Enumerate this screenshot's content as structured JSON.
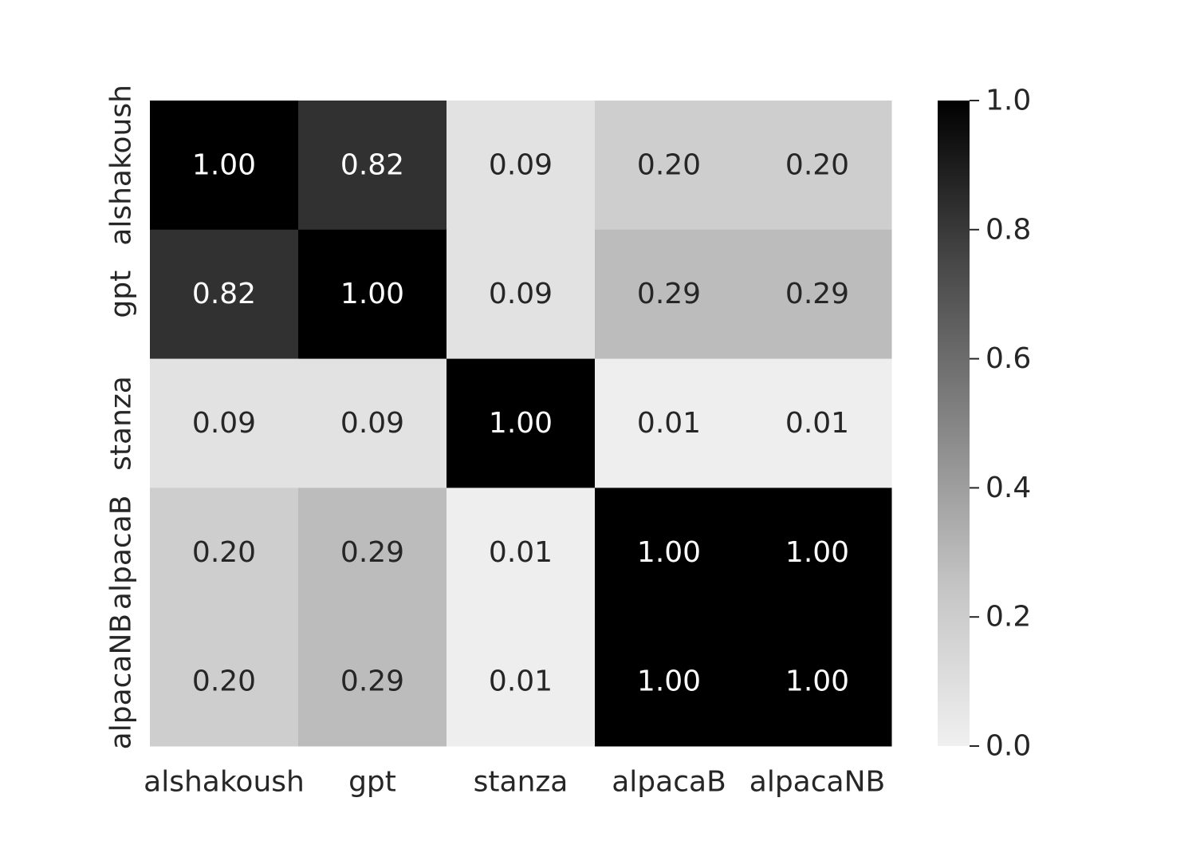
{
  "chart_data": {
    "type": "heatmap",
    "title": "",
    "xlabel": "",
    "ylabel": "",
    "x_labels": [
      "alshakoush",
      "gpt",
      "stanza",
      "alpacaB",
      "alpacaNB"
    ],
    "y_labels": [
      "alshakoush",
      "gpt",
      "stanza",
      "alpacaB",
      "alpacaNB"
    ],
    "values": [
      [
        1.0,
        0.82,
        0.09,
        0.2,
        0.2
      ],
      [
        0.82,
        1.0,
        0.09,
        0.29,
        0.29
      ],
      [
        0.09,
        0.09,
        1.0,
        0.01,
        0.01
      ],
      [
        0.2,
        0.29,
        0.01,
        1.0,
        1.0
      ],
      [
        0.2,
        0.29,
        0.01,
        1.0,
        1.0
      ]
    ],
    "annotation_format": "0.00",
    "colormap": "Greys",
    "colorbar": {
      "range": [
        0.0,
        1.0
      ],
      "ticks": [
        "0.0",
        "0.2",
        "0.4",
        "0.6",
        "0.8",
        "1.0"
      ],
      "color_low": "#f0f0f0",
      "color_high": "#000000"
    },
    "annotation_colors": {
      "on_dark": "#ffffff",
      "on_light": "#262626"
    },
    "grid": false,
    "legend": "colorbar-right"
  }
}
